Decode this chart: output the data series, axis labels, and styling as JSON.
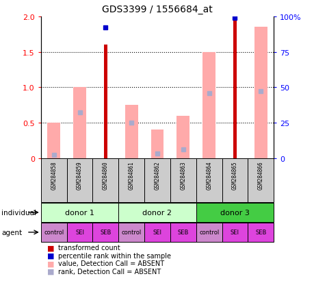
{
  "title": "GDS3399 / 1556684_at",
  "samples": [
    "GSM284858",
    "GSM284859",
    "GSM284860",
    "GSM284861",
    "GSM284862",
    "GSM284863",
    "GSM284864",
    "GSM284865",
    "GSM284866"
  ],
  "transformed_count": [
    0,
    0,
    1.6,
    0,
    0,
    0,
    0,
    2.0,
    0
  ],
  "percentile_rank": [
    0,
    0,
    92,
    0,
    0,
    0,
    0,
    99,
    0
  ],
  "value_absent": [
    0.5,
    1.0,
    0,
    0.75,
    0.4,
    0.6,
    1.5,
    0,
    1.85
  ],
  "rank_absent": [
    0.05,
    0.65,
    0,
    0.5,
    0.07,
    0.12,
    0.92,
    0,
    0.95
  ],
  "individuals": [
    "donor 1",
    "donor 1",
    "donor 1",
    "donor 2",
    "donor 2",
    "donor 2",
    "donor 3",
    "donor 3",
    "donor 3"
  ],
  "agents": [
    "control",
    "SEI",
    "SEB",
    "control",
    "SEI",
    "SEB",
    "control",
    "SEI",
    "SEB"
  ],
  "ylim_left": [
    0,
    2
  ],
  "ylim_right": [
    0,
    100
  ],
  "yticks_left": [
    0,
    0.5,
    1.0,
    1.5,
    2.0
  ],
  "yticks_right": [
    0,
    25,
    50,
    75,
    100
  ],
  "yticklabels_right": [
    "0",
    "25",
    "50",
    "75",
    "100%"
  ],
  "bar_color_red": "#cc0000",
  "bar_color_pink": "#ffaaaa",
  "dot_color_blue": "#0000cc",
  "dot_color_lightblue": "#aaaacc",
  "sample_box_color": "#cccccc",
  "donor1_color": "#ccffcc",
  "donor2_color": "#ccffcc",
  "donor3_color": "#44cc44",
  "control_color": "#cc88cc",
  "sei_color": "#dd44dd",
  "seb_color": "#dd44dd",
  "legend_items": [
    {
      "label": "transformed count",
      "color": "#cc0000"
    },
    {
      "label": "percentile rank within the sample",
      "color": "#0000cc"
    },
    {
      "label": "value, Detection Call = ABSENT",
      "color": "#ffaaaa"
    },
    {
      "label": "rank, Detection Call = ABSENT",
      "color": "#aaaacc"
    }
  ]
}
